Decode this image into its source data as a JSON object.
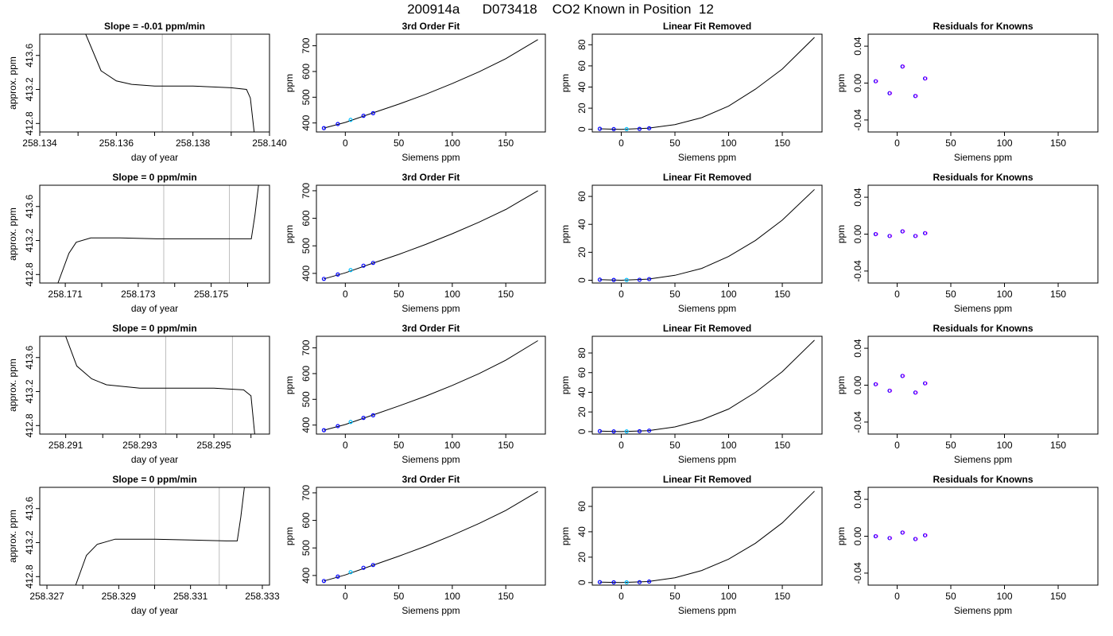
{
  "figure": {
    "title": "200914a      D073418    CO2 Known in Position  12",
    "colors": {
      "series": "#000000",
      "points": "#0000ff",
      "points_alt": "#ff00ff",
      "points_mid": "#00bfff",
      "vlines": "#bebebe"
    }
  },
  "chart_data": [
    {
      "type": "line",
      "row": 0,
      "col": 0,
      "title": "Slope =  -0.01  ppm/min",
      "xlabel": "day of year",
      "ylabel": "approx. ppm",
      "xlim": [
        258.134,
        258.14
      ],
      "ylim": [
        412.7,
        413.85
      ],
      "xticks": [
        258.134,
        258.136,
        258.138,
        258.14
      ],
      "xtick_labels": [
        "258.134",
        "258.136",
        "258.138",
        "258.140"
      ],
      "xticks_minor": [
        258.135,
        258.137,
        258.139
      ],
      "yticks": [
        412.8,
        413.2,
        413.6
      ],
      "ytick_labels": [
        "412.8",
        "413.2",
        "413.6"
      ],
      "vlines": [
        258.1372,
        258.139
      ],
      "x": [
        258.1352,
        258.1356,
        258.136,
        258.1364,
        258.137,
        258.138,
        258.139,
        258.1394,
        258.1395,
        258.1396
      ],
      "y": [
        413.85,
        413.42,
        413.3,
        413.26,
        413.24,
        413.24,
        413.22,
        413.2,
        413.1,
        412.7
      ]
    },
    {
      "type": "line",
      "row": 1,
      "col": 0,
      "title": "Slope =  0  ppm/min",
      "xlabel": "day of year",
      "ylabel": "approx. ppm",
      "xlim": [
        258.1703,
        258.1766
      ],
      "ylim": [
        412.7,
        413.85
      ],
      "xticks": [
        258.171,
        258.173,
        258.175
      ],
      "xtick_labels": [
        "258.171",
        "258.173",
        "258.175"
      ],
      "xticks_minor": [
        258.172,
        258.174,
        258.176
      ],
      "yticks": [
        412.8,
        413.2,
        413.6
      ],
      "ytick_labels": [
        "412.8",
        "413.2",
        "413.6"
      ],
      "vlines": [
        258.1737,
        258.1755
      ],
      "x": [
        258.1708,
        258.1711,
        258.1713,
        258.1717,
        258.1725,
        258.1735,
        258.1745,
        258.1755,
        258.1761,
        258.1762,
        258.1763
      ],
      "y": [
        412.7,
        413.05,
        413.18,
        413.23,
        413.23,
        413.22,
        413.22,
        413.22,
        413.22,
        413.5,
        413.85
      ]
    },
    {
      "type": "line",
      "row": 2,
      "col": 0,
      "title": "Slope =  0  ppm/min",
      "xlabel": "day of year",
      "ylabel": "approx. ppm",
      "xlim": [
        258.2903,
        258.2965
      ],
      "ylim": [
        412.7,
        413.85
      ],
      "xticks": [
        258.291,
        258.293,
        258.295
      ],
      "xtick_labels": [
        "258.291",
        "258.293",
        "258.295"
      ],
      "xticks_minor": [
        258.292,
        258.294,
        258.296
      ],
      "yticks": [
        412.8,
        413.2,
        413.6
      ],
      "ytick_labels": [
        "412.8",
        "413.2",
        "413.6"
      ],
      "vlines": [
        258.2937,
        258.2955
      ],
      "x": [
        258.291,
        258.2913,
        258.2917,
        258.2921,
        258.293,
        258.294,
        258.295,
        258.2958,
        258.296,
        258.2961
      ],
      "y": [
        413.85,
        413.5,
        413.35,
        413.28,
        413.24,
        413.24,
        413.24,
        413.22,
        413.15,
        412.7
      ]
    },
    {
      "type": "line",
      "row": 3,
      "col": 0,
      "title": "Slope =  0  ppm/min",
      "xlabel": "day of year",
      "ylabel": "approx. ppm",
      "xlim": [
        258.3268,
        258.3332
      ],
      "ylim": [
        412.7,
        413.85
      ],
      "xticks": [
        258.327,
        258.329,
        258.331,
        258.333
      ],
      "xtick_labels": [
        "258.327",
        "258.329",
        "258.331",
        "258.333"
      ],
      "xticks_minor": [
        258.328,
        258.33,
        258.332
      ],
      "yticks": [
        412.8,
        413.2,
        413.6
      ],
      "ytick_labels": [
        "412.8",
        "413.2",
        "413.6"
      ],
      "vlines": [
        258.33,
        258.3318
      ],
      "x": [
        258.3278,
        258.3281,
        258.3284,
        258.3289,
        258.33,
        258.331,
        258.332,
        258.3323,
        258.3324,
        258.3325
      ],
      "y": [
        412.7,
        413.05,
        413.18,
        413.24,
        413.24,
        413.23,
        413.22,
        413.22,
        413.5,
        413.85
      ]
    },
    {
      "type": "line",
      "row": 0,
      "col": 1,
      "title": "3rd Order Fit",
      "xlabel": "Siemens ppm",
      "ylabel": "ppm",
      "xlim": [
        -27,
        187
      ],
      "ylim": [
        365,
        745
      ],
      "xticks": [
        0,
        50,
        100,
        150
      ],
      "yticks": [
        400,
        500,
        600,
        700
      ],
      "curve": {
        "x": [
          -20,
          0,
          25,
          50,
          75,
          100,
          125,
          150,
          180
        ],
        "y": [
          380,
          402,
          438,
          473,
          511,
          553,
          599,
          650,
          724
        ]
      },
      "points": {
        "x": [
          -20,
          -7,
          5,
          17,
          26
        ],
        "y": [
          380,
          396,
          412,
          428,
          438
        ]
      }
    },
    {
      "type": "line",
      "row": 1,
      "col": 1,
      "title": "3rd Order Fit",
      "xlabel": "Siemens ppm",
      "ylabel": "ppm",
      "xlim": [
        -27,
        187
      ],
      "ylim": [
        365,
        720
      ],
      "xticks": [
        0,
        50,
        100,
        150
      ],
      "yticks": [
        400,
        500,
        600,
        700
      ],
      "curve": {
        "x": [
          -20,
          0,
          25,
          50,
          75,
          100,
          125,
          150,
          180
        ],
        "y": [
          380,
          402,
          436,
          469,
          505,
          544,
          586,
          632,
          700
        ]
      },
      "points": {
        "x": [
          -20,
          -7,
          5,
          17,
          26
        ],
        "y": [
          380,
          396,
          412,
          428,
          438
        ]
      }
    },
    {
      "type": "line",
      "row": 2,
      "col": 1,
      "title": "3rd Order Fit",
      "xlabel": "Siemens ppm",
      "ylabel": "ppm",
      "xlim": [
        -27,
        187
      ],
      "ylim": [
        365,
        745
      ],
      "xticks": [
        0,
        50,
        100,
        150
      ],
      "yticks": [
        400,
        500,
        600,
        700
      ],
      "curve": {
        "x": [
          -20,
          0,
          25,
          50,
          75,
          100,
          125,
          150,
          180
        ],
        "y": [
          380,
          402,
          438,
          474,
          512,
          554,
          600,
          652,
          728
        ]
      },
      "points": {
        "x": [
          -20,
          -7,
          5,
          17,
          26
        ],
        "y": [
          380,
          396,
          412,
          428,
          438
        ]
      }
    },
    {
      "type": "line",
      "row": 3,
      "col": 1,
      "title": "3rd Order Fit",
      "xlabel": "Siemens ppm",
      "ylabel": "ppm",
      "xlim": [
        -27,
        187
      ],
      "ylim": [
        365,
        720
      ],
      "xticks": [
        0,
        50,
        100,
        150
      ],
      "yticks": [
        400,
        500,
        600,
        700
      ],
      "curve": {
        "x": [
          -20,
          0,
          25,
          50,
          75,
          100,
          125,
          150,
          180
        ],
        "y": [
          380,
          402,
          436,
          470,
          506,
          546,
          589,
          636,
          705
        ]
      },
      "points": {
        "x": [
          -20,
          -7,
          5,
          17,
          26
        ],
        "y": [
          380,
          396,
          412,
          428,
          438
        ]
      }
    },
    {
      "type": "line",
      "row": 0,
      "col": 2,
      "title": "Linear Fit Removed",
      "xlabel": "Siemens ppm",
      "ylabel": "ppm",
      "xlim": [
        -27,
        187
      ],
      "ylim": [
        -2.5,
        90
      ],
      "xticks": [
        0,
        50,
        100,
        150
      ],
      "yticks": [
        0,
        20,
        40,
        60,
        80
      ],
      "curve": {
        "x": [
          -20,
          0,
          25,
          50,
          75,
          100,
          125,
          150,
          180
        ],
        "y": [
          0.5,
          0,
          1,
          4.5,
          11,
          22,
          38,
          57,
          87
        ]
      },
      "points": {
        "x": [
          -20,
          -7,
          5,
          17,
          26
        ],
        "y": [
          0.5,
          0.2,
          0.2,
          0.4,
          1.0
        ]
      }
    },
    {
      "type": "line",
      "row": 1,
      "col": 2,
      "title": "Linear Fit Removed",
      "xlabel": "Siemens ppm",
      "ylabel": "ppm",
      "xlim": [
        -27,
        187
      ],
      "ylim": [
        -2,
        68
      ],
      "xticks": [
        0,
        50,
        100,
        150
      ],
      "yticks": [
        0,
        20,
        40,
        60
      ],
      "curve": {
        "x": [
          -20,
          0,
          25,
          50,
          75,
          100,
          125,
          150,
          180
        ],
        "y": [
          0.4,
          0,
          0.8,
          3.5,
          8.5,
          17,
          28.5,
          43,
          65
        ]
      },
      "points": {
        "x": [
          -20,
          -7,
          5,
          17,
          26
        ],
        "y": [
          0.4,
          0.2,
          0.2,
          0.3,
          0.8
        ]
      }
    },
    {
      "type": "line",
      "row": 2,
      "col": 2,
      "title": "Linear Fit Removed",
      "xlabel": "Siemens ppm",
      "ylabel": "ppm",
      "xlim": [
        -27,
        187
      ],
      "ylim": [
        -2.5,
        97
      ],
      "xticks": [
        0,
        50,
        100,
        150
      ],
      "yticks": [
        0,
        20,
        40,
        60,
        80
      ],
      "curve": {
        "x": [
          -20,
          0,
          25,
          50,
          75,
          100,
          125,
          150,
          180
        ],
        "y": [
          0.5,
          0,
          1,
          4.8,
          12,
          23,
          40,
          61,
          93
        ]
      },
      "points": {
        "x": [
          -20,
          -7,
          5,
          17,
          26
        ],
        "y": [
          0.5,
          0.2,
          0.2,
          0.4,
          1.0
        ]
      }
    },
    {
      "type": "line",
      "row": 3,
      "col": 2,
      "title": "Linear Fit Removed",
      "xlabel": "Siemens ppm",
      "ylabel": "ppm",
      "xlim": [
        -27,
        187
      ],
      "ylim": [
        -2,
        75
      ],
      "xticks": [
        0,
        50,
        100,
        150
      ],
      "yticks": [
        0,
        20,
        40,
        60
      ],
      "curve": {
        "x": [
          -20,
          0,
          25,
          50,
          75,
          100,
          125,
          150,
          180
        ],
        "y": [
          0.4,
          0,
          0.8,
          3.8,
          9.5,
          18.5,
          31,
          47,
          72
        ]
      },
      "points": {
        "x": [
          -20,
          -7,
          5,
          17,
          26
        ],
        "y": [
          0.4,
          0.2,
          0.2,
          0.3,
          0.8
        ]
      }
    },
    {
      "type": "scatter",
      "row": 0,
      "col": 3,
      "title": "Residuals for Knowns",
      "xlabel": "Siemens ppm",
      "ylabel": "ppm",
      "xlim": [
        -27,
        187
      ],
      "ylim": [
        -0.053,
        0.053
      ],
      "xticks": [
        0,
        50,
        100,
        150
      ],
      "yticks": [
        -0.04,
        0.0,
        0.04
      ],
      "ytick_labels": [
        "-0.04",
        "0.00",
        "0.04"
      ],
      "points": {
        "x": [
          -20,
          -7,
          5,
          17,
          26
        ],
        "y": [
          0.002,
          -0.011,
          0.018,
          -0.014,
          0.005
        ]
      }
    },
    {
      "type": "scatter",
      "row": 1,
      "col": 3,
      "title": "Residuals for Knowns",
      "xlabel": "Siemens ppm",
      "ylabel": "ppm",
      "xlim": [
        -27,
        187
      ],
      "ylim": [
        -0.053,
        0.053
      ],
      "xticks": [
        0,
        50,
        100,
        150
      ],
      "yticks": [
        -0.04,
        0.0,
        0.04
      ],
      "ytick_labels": [
        "-0.04",
        "0.00",
        "0.04"
      ],
      "points": {
        "x": [
          -20,
          -7,
          5,
          17,
          26
        ],
        "y": [
          0.0,
          -0.002,
          0.003,
          -0.002,
          0.001
        ]
      }
    },
    {
      "type": "scatter",
      "row": 2,
      "col": 3,
      "title": "Residuals for Knowns",
      "xlabel": "Siemens ppm",
      "ylabel": "ppm",
      "xlim": [
        -27,
        187
      ],
      "ylim": [
        -0.053,
        0.053
      ],
      "xticks": [
        0,
        50,
        100,
        150
      ],
      "yticks": [
        -0.04,
        0.0,
        0.04
      ],
      "ytick_labels": [
        "-0.04",
        "0.00",
        "0.04"
      ],
      "points": {
        "x": [
          -20,
          -7,
          5,
          17,
          26
        ],
        "y": [
          0.001,
          -0.006,
          0.01,
          -0.008,
          0.002
        ]
      }
    },
    {
      "type": "scatter",
      "row": 3,
      "col": 3,
      "title": "Residuals for Knowns",
      "xlabel": "Siemens ppm",
      "ylabel": "ppm",
      "xlim": [
        -27,
        187
      ],
      "ylim": [
        -0.053,
        0.053
      ],
      "xticks": [
        0,
        50,
        100,
        150
      ],
      "yticks": [
        -0.04,
        0.0,
        0.04
      ],
      "ytick_labels": [
        "-0.04",
        "0.00",
        "0.04"
      ],
      "points": {
        "x": [
          -20,
          -7,
          5,
          17,
          26
        ],
        "y": [
          0.0,
          -0.002,
          0.004,
          -0.003,
          0.001
        ]
      }
    }
  ]
}
